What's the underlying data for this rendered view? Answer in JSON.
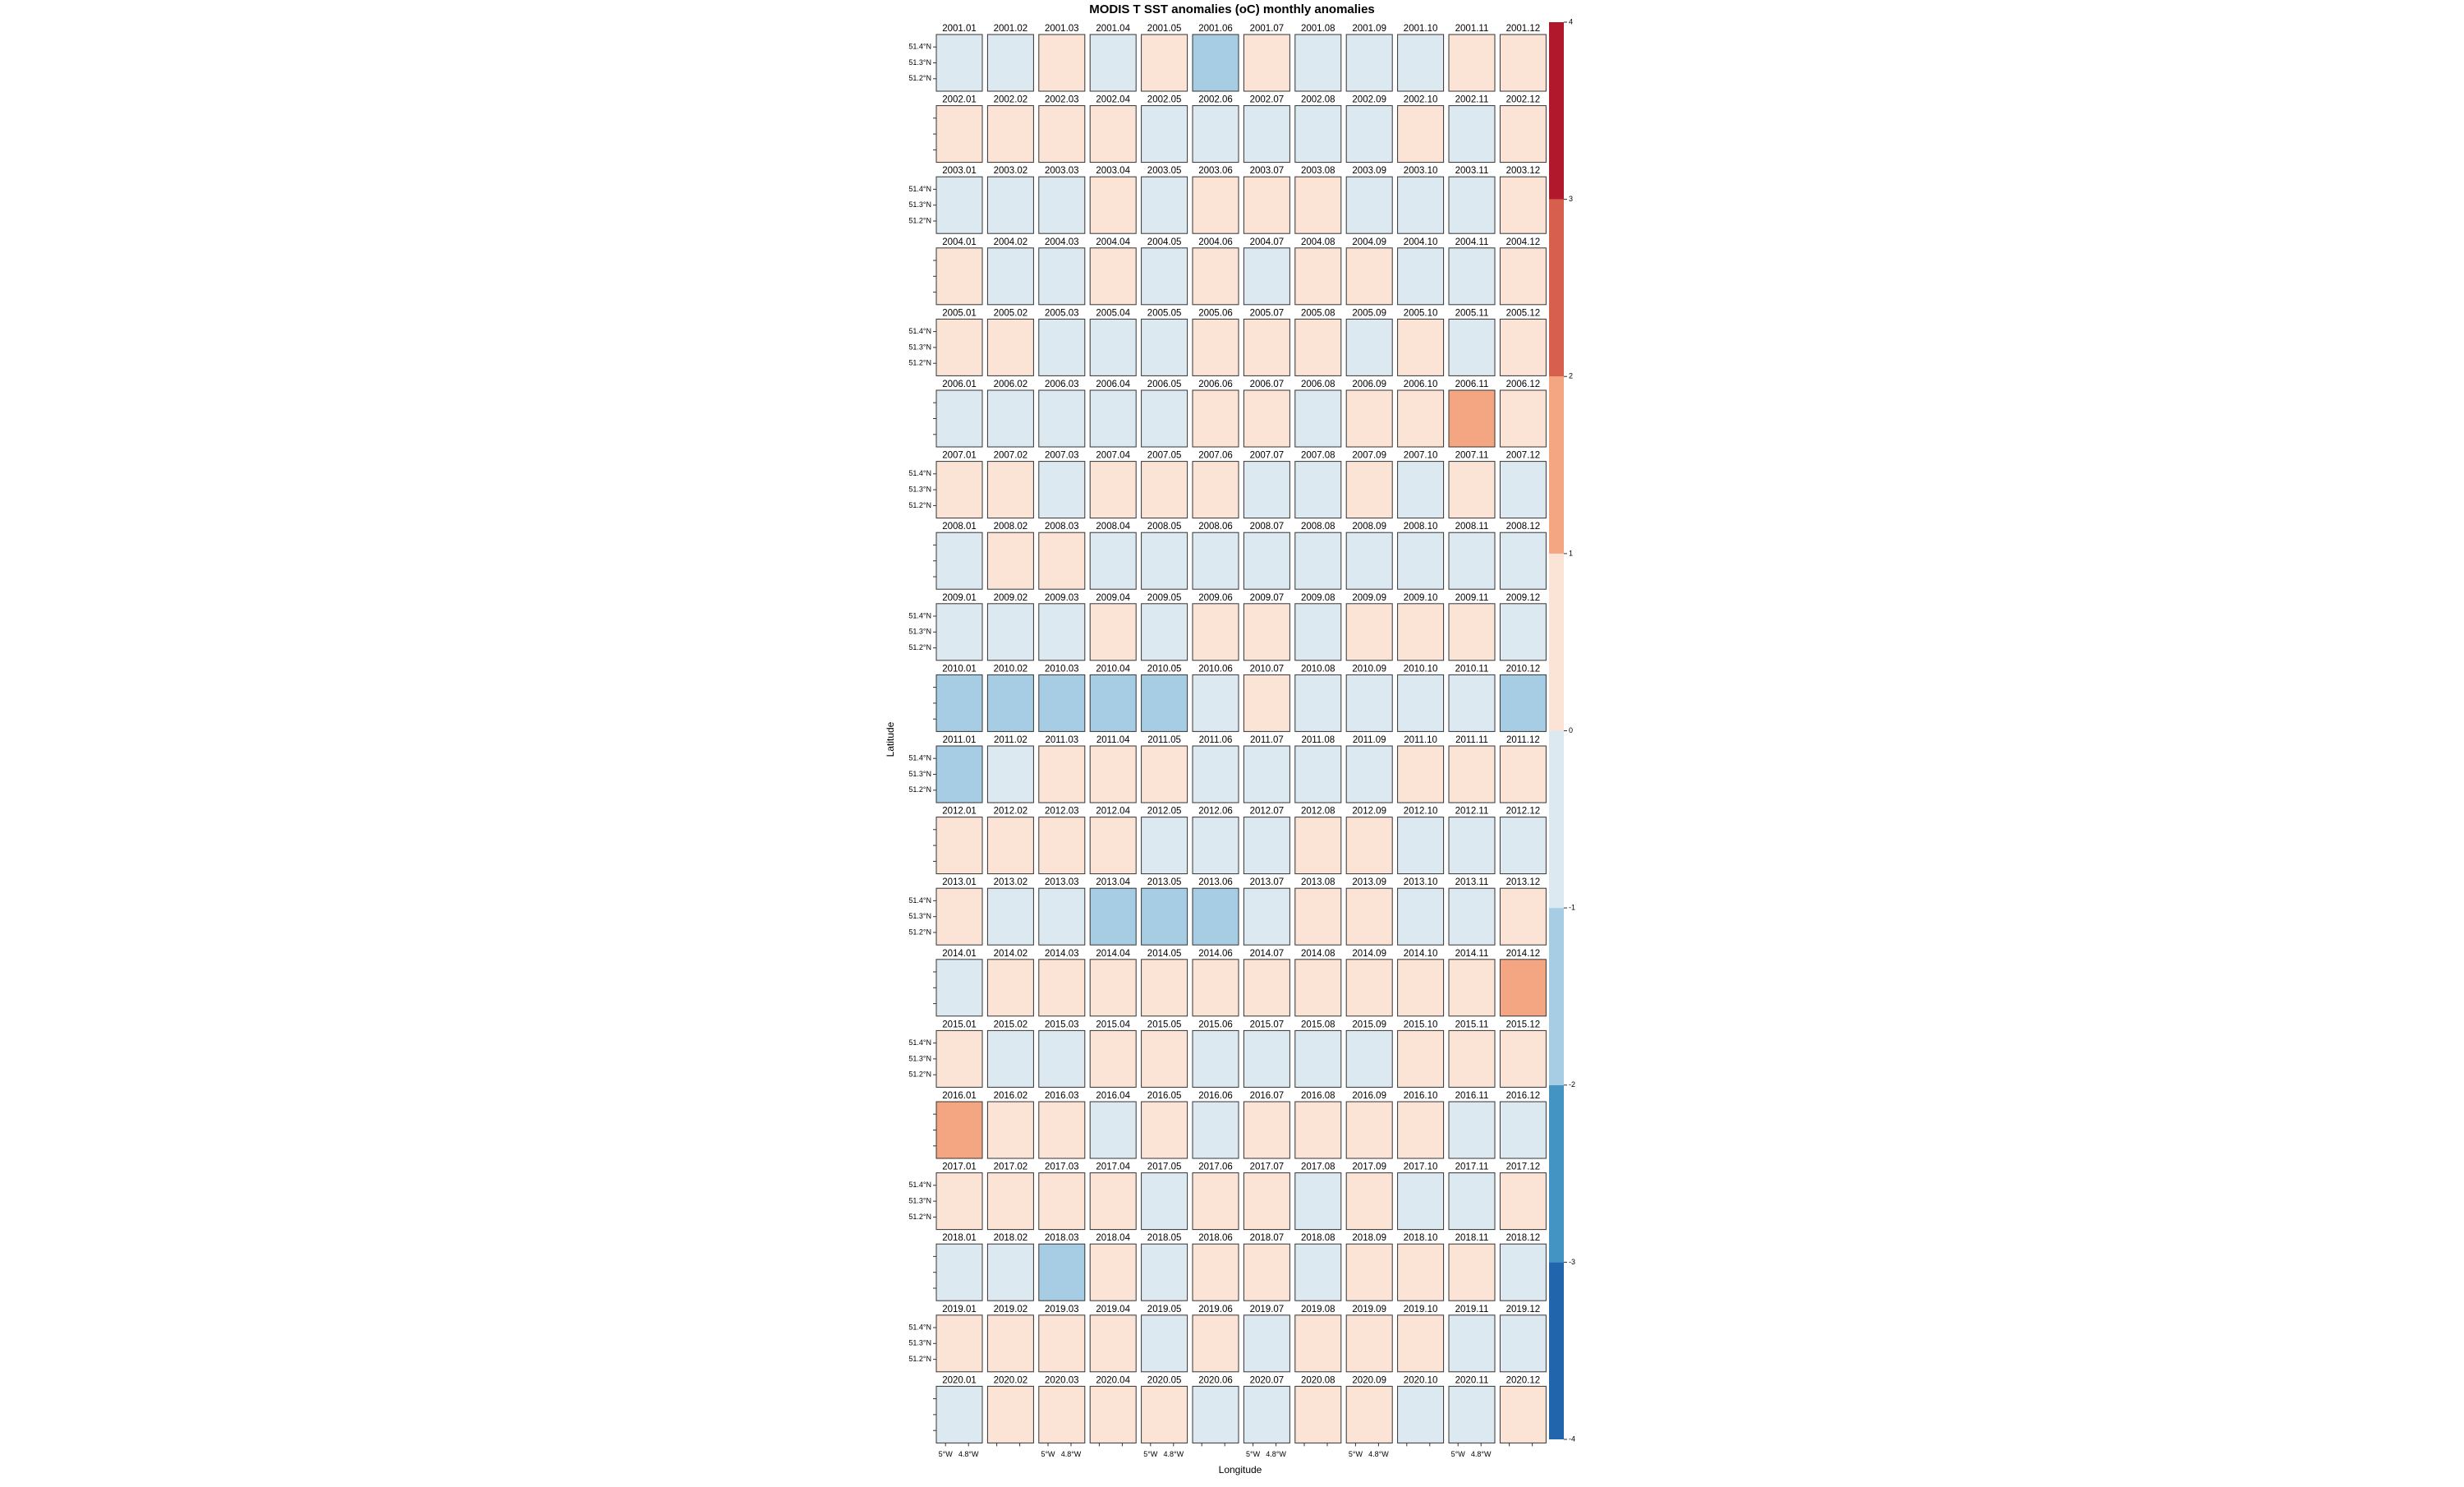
{
  "chart_data": {
    "type": "map-grid",
    "title": "MODIS T SST anomalies (oC) monthly anomalies",
    "xlabel": "Longitude",
    "ylabel": "Latitude",
    "columns": 12,
    "lat_labels": [
      "51.4°N",
      "51.3°N",
      "51.2°N"
    ],
    "lon_labels": [
      "5°W",
      "4.8°W"
    ],
    "categories": [
      "2001.01",
      "2001.02",
      "2001.03",
      "2001.04",
      "2001.05",
      "2001.06",
      "2001.07",
      "2001.08",
      "2001.09",
      "2001.10",
      "2001.11",
      "2001.12",
      "2002.01",
      "2002.02",
      "2002.03",
      "2002.04",
      "2002.05",
      "2002.06",
      "2002.07",
      "2002.08",
      "2002.09",
      "2002.10",
      "2002.11",
      "2002.12",
      "2003.01",
      "2003.02",
      "2003.03",
      "2003.04",
      "2003.05",
      "2003.06",
      "2003.07",
      "2003.08",
      "2003.09",
      "2003.10",
      "2003.11",
      "2003.12",
      "2004.01",
      "2004.02",
      "2004.03",
      "2004.04",
      "2004.05",
      "2004.06",
      "2004.07",
      "2004.08",
      "2004.09",
      "2004.10",
      "2004.11",
      "2004.12",
      "2005.01",
      "2005.02",
      "2005.03",
      "2005.04",
      "2005.05",
      "2005.06",
      "2005.07",
      "2005.08",
      "2005.09",
      "2005.10",
      "2005.11",
      "2005.12",
      "2006.01",
      "2006.02",
      "2006.03",
      "2006.04",
      "2006.05",
      "2006.06",
      "2006.07",
      "2006.08",
      "2006.09",
      "2006.10",
      "2006.11",
      "2006.12",
      "2007.01",
      "2007.02",
      "2007.03",
      "2007.04",
      "2007.05",
      "2007.06",
      "2007.07",
      "2007.08",
      "2007.09",
      "2007.10",
      "2007.11",
      "2007.12",
      "2008.01",
      "2008.02",
      "2008.03",
      "2008.04",
      "2008.05",
      "2008.06",
      "2008.07",
      "2008.08",
      "2008.09",
      "2008.10",
      "2008.11",
      "2008.12",
      "2009.01",
      "2009.02",
      "2009.03",
      "2009.04",
      "2009.05",
      "2009.06",
      "2009.07",
      "2009.08",
      "2009.09",
      "2009.10",
      "2009.11",
      "2009.12",
      "2010.01",
      "2010.02",
      "2010.03",
      "2010.04",
      "2010.05",
      "2010.06",
      "2010.07",
      "2010.08",
      "2010.09",
      "2010.10",
      "2010.11",
      "2010.12",
      "2011.01",
      "2011.02",
      "2011.03",
      "2011.04",
      "2011.05",
      "2011.06",
      "2011.07",
      "2011.08",
      "2011.09",
      "2011.10",
      "2011.11",
      "2011.12",
      "2012.01",
      "2012.02",
      "2012.03",
      "2012.04",
      "2012.05",
      "2012.06",
      "2012.07",
      "2012.08",
      "2012.09",
      "2012.10",
      "2012.11",
      "2012.12",
      "2013.01",
      "2013.02",
      "2013.03",
      "2013.04",
      "2013.05",
      "2013.06",
      "2013.07",
      "2013.08",
      "2013.09",
      "2013.10",
      "2013.11",
      "2013.12",
      "2014.01",
      "2014.02",
      "2014.03",
      "2014.04",
      "2014.05",
      "2014.06",
      "2014.07",
      "2014.08",
      "2014.09",
      "2014.10",
      "2014.11",
      "2014.12",
      "2015.01",
      "2015.02",
      "2015.03",
      "2015.04",
      "2015.05",
      "2015.06",
      "2015.07",
      "2015.08",
      "2015.09",
      "2015.10",
      "2015.11",
      "2015.12",
      "2016.01",
      "2016.02",
      "2016.03",
      "2016.04",
      "2016.05",
      "2016.06",
      "2016.07",
      "2016.08",
      "2016.09",
      "2016.10",
      "2016.11",
      "2016.12",
      "2017.01",
      "2017.02",
      "2017.03",
      "2017.04",
      "2017.05",
      "2017.06",
      "2017.07",
      "2017.08",
      "2017.09",
      "2017.10",
      "2017.11",
      "2017.12",
      "2018.01",
      "2018.02",
      "2018.03",
      "2018.04",
      "2018.05",
      "2018.06",
      "2018.07",
      "2018.08",
      "2018.09",
      "2018.10",
      "2018.11",
      "2018.12",
      "2019.01",
      "2019.02",
      "2019.03",
      "2019.04",
      "2019.05",
      "2019.06",
      "2019.07",
      "2019.08",
      "2019.09",
      "2019.10",
      "2019.11",
      "2019.12",
      "2020.01",
      "2020.02",
      "2020.03",
      "2020.04",
      "2020.05",
      "2020.06",
      "2020.07",
      "2020.08",
      "2020.09",
      "2020.10",
      "2020.11",
      "2020.12"
    ],
    "values": [
      -0.5,
      -0.5,
      0.5,
      -0.5,
      0.5,
      -1.5,
      0.5,
      -0.5,
      -0.5,
      -0.5,
      0.5,
      0.5,
      0.5,
      0.5,
      0.5,
      0.5,
      -0.5,
      -0.5,
      -0.5,
      -0.5,
      -0.5,
      0.5,
      -0.5,
      0.5,
      -0.5,
      -0.5,
      -0.5,
      0.5,
      -0.5,
      0.5,
      0.5,
      0.5,
      -0.5,
      -0.5,
      -0.5,
      0.5,
      0.5,
      -0.5,
      -0.5,
      0.5,
      -0.5,
      0.5,
      -0.5,
      0.5,
      0.5,
      -0.5,
      -0.5,
      0.5,
      0.5,
      0.5,
      -0.5,
      -0.5,
      -0.5,
      0.5,
      0.5,
      0.5,
      -0.5,
      0.5,
      -0.5,
      0.5,
      -0.5,
      -0.5,
      -0.5,
      -0.5,
      -0.5,
      0.5,
      0.5,
      -0.5,
      0.5,
      0.5,
      1.5,
      0.5,
      0.5,
      0.5,
      -0.5,
      0.5,
      0.5,
      0.5,
      -0.5,
      -0.5,
      0.5,
      -0.5,
      0.5,
      -0.5,
      -0.5,
      0.5,
      0.5,
      -0.5,
      -0.5,
      -0.5,
      -0.5,
      -0.5,
      -0.5,
      -0.5,
      -0.5,
      -0.5,
      -0.5,
      -0.5,
      -0.5,
      0.5,
      -0.5,
      0.5,
      0.5,
      -0.5,
      0.5,
      0.5,
      0.5,
      -0.5,
      -1.5,
      -1.5,
      -1.5,
      -1.5,
      -1.5,
      -0.5,
      0.5,
      -0.5,
      -0.5,
      -0.5,
      -0.5,
      -1.5,
      -1.5,
      -0.5,
      0.5,
      0.5,
      0.5,
      -0.5,
      -0.5,
      -0.5,
      -0.5,
      0.5,
      0.5,
      0.5,
      0.5,
      0.5,
      0.5,
      0.5,
      -0.5,
      -0.5,
      -0.5,
      0.5,
      0.5,
      -0.5,
      -0.5,
      -0.5,
      0.5,
      -0.5,
      -0.5,
      -1.5,
      -1.5,
      -1.5,
      -0.5,
      0.5,
      0.5,
      -0.5,
      -0.5,
      0.5,
      -0.5,
      0.5,
      0.5,
      0.5,
      0.5,
      0.5,
      0.5,
      0.5,
      0.5,
      0.5,
      0.5,
      1.5,
      0.5,
      -0.5,
      -0.5,
      0.5,
      0.5,
      -0.5,
      -0.5,
      -0.5,
      -0.5,
      0.5,
      0.5,
      0.5,
      1.5,
      0.5,
      0.5,
      -0.5,
      0.5,
      -0.5,
      0.5,
      0.5,
      0.5,
      0.5,
      -0.5,
      -0.5,
      0.5,
      0.5,
      0.5,
      0.5,
      -0.5,
      0.5,
      0.5,
      -0.5,
      0.5,
      -0.5,
      -0.5,
      0.5,
      -0.5,
      -0.5,
      -1.5,
      0.5,
      -0.5,
      0.5,
      0.5,
      -0.5,
      0.5,
      0.5,
      0.5,
      -0.5,
      0.5,
      0.5,
      0.5,
      0.5,
      -0.5,
      0.5,
      -0.5,
      0.5,
      0.5,
      0.5,
      -0.5,
      -0.5,
      -0.5,
      0.5,
      0.5,
      0.5,
      0.5,
      -0.5,
      -0.5,
      0.5,
      0.5,
      -0.5,
      -0.5,
      0.5
    ],
    "levels": [
      -4,
      -3,
      -2,
      -1,
      0,
      1,
      2,
      3,
      4
    ],
    "colors": [
      "#2166ac",
      "#4393c3",
      "#a6cde3",
      "#dce9f1",
      "#fbe3d6",
      "#f4a582",
      "#d6604d",
      "#b2182b"
    ]
  }
}
